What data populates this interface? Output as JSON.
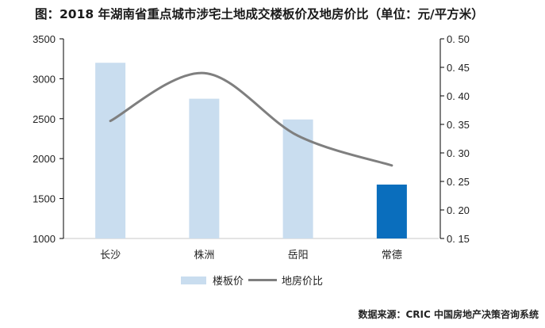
{
  "title": "图：2018 年湖南省重点城市涉宅土地成交楼板价及地房价比（单位：元/平方米）",
  "source": "数据来源：CRIC 中国房地产决策咨询系统",
  "legend": {
    "bar_label": "楼板价",
    "line_label": "地房价比"
  },
  "axes": {
    "left_ticks": [
      "3500",
      "3000",
      "2500",
      "2000",
      "1500",
      "1000"
    ],
    "right_ticks": [
      "0. 50",
      "0. 45",
      "0. 40",
      "0. 35",
      "0. 30",
      "0. 25",
      "0. 20",
      "0. 15"
    ]
  },
  "categories": [
    "长沙",
    "株洲",
    "岳阳",
    "常德"
  ],
  "colors": {
    "bar": "#c9ddef",
    "bar_highlight": "#0a6ebd",
    "line": "#7f7f7f",
    "axis": "#000000"
  },
  "chart_data": {
    "type": "bar",
    "title": "图：2018 年湖南省重点城市涉宅土地成交楼板价及地房价比（单位：元/平方米）",
    "categories": [
      "长沙",
      "株洲",
      "岳阳",
      "常德"
    ],
    "series": [
      {
        "name": "楼板价",
        "type": "bar",
        "axis": "left",
        "values": [
          3200,
          2750,
          2490,
          1675
        ]
      },
      {
        "name": "地房价比",
        "type": "line",
        "axis": "right",
        "smooth": true,
        "values": [
          0.356,
          0.44,
          0.33,
          0.278
        ]
      }
    ],
    "xlabel": "",
    "ylabel": "",
    "ylim": [
      1000,
      3500
    ],
    "y2lim": [
      0.15,
      0.5
    ],
    "highlight_category": "常德",
    "legend_position": "bottom",
    "grid": false,
    "source": "数据来源：CRIC 中国房地产决策咨询系统"
  }
}
